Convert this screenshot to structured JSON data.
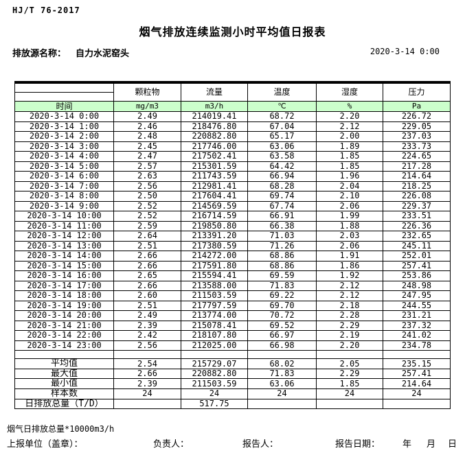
{
  "header": {
    "standard_code": "HJ/T  76-2017",
    "title": "烟气排放连续监测小时平均值日报表",
    "source_label": "排放源名称：",
    "source_name": "自力水泥窑头",
    "datetime": "2020-3-14 0:00"
  },
  "table": {
    "time_header": "时间",
    "columns": [
      "颗粒物",
      "流量",
      "温度",
      "湿度",
      "压力"
    ],
    "units": [
      "mg/m3",
      "m3/h",
      "℃",
      "%",
      "Pa"
    ],
    "rows": [
      {
        "time": "2020-3-14 0:00",
        "values": [
          "2.49",
          "214019.41",
          "68.72",
          "2.20",
          "226.72"
        ]
      },
      {
        "time": "2020-3-14 1:00",
        "values": [
          "2.46",
          "218476.80",
          "67.04",
          "2.12",
          "229.05"
        ]
      },
      {
        "time": "2020-3-14 2:00",
        "values": [
          "2.48",
          "220882.80",
          "65.17",
          "2.00",
          "237.03"
        ]
      },
      {
        "time": "2020-3-14 3:00",
        "values": [
          "2.45",
          "217746.00",
          "63.06",
          "1.89",
          "233.73"
        ]
      },
      {
        "time": "2020-3-14 4:00",
        "values": [
          "2.47",
          "217502.41",
          "63.58",
          "1.85",
          "224.65"
        ]
      },
      {
        "time": "2020-3-14 5:00",
        "values": [
          "2.57",
          "215301.59",
          "64.42",
          "1.85",
          "217.28"
        ]
      },
      {
        "time": "2020-3-14 6:00",
        "values": [
          "2.63",
          "211743.59",
          "66.94",
          "1.96",
          "214.64"
        ]
      },
      {
        "time": "2020-3-14 7:00",
        "values": [
          "2.56",
          "212981.41",
          "68.28",
          "2.04",
          "218.25"
        ]
      },
      {
        "time": "2020-3-14 8:00",
        "values": [
          "2.50",
          "217604.41",
          "69.74",
          "2.10",
          "226.08"
        ]
      },
      {
        "time": "2020-3-14 9:00",
        "values": [
          "2.52",
          "214569.59",
          "67.74",
          "2.06",
          "229.37"
        ]
      },
      {
        "time": "2020-3-14 10:00",
        "values": [
          "2.52",
          "216714.59",
          "66.91",
          "1.99",
          "233.51"
        ]
      },
      {
        "time": "2020-3-14 11:00",
        "values": [
          "2.59",
          "219850.80",
          "66.38",
          "1.88",
          "226.36"
        ]
      },
      {
        "time": "2020-3-14 12:00",
        "values": [
          "2.64",
          "213391.20",
          "71.03",
          "2.03",
          "232.65"
        ]
      },
      {
        "time": "2020-3-14 13:00",
        "values": [
          "2.51",
          "217380.59",
          "71.26",
          "2.06",
          "245.11"
        ]
      },
      {
        "time": "2020-3-14 14:00",
        "values": [
          "2.66",
          "214272.00",
          "68.86",
          "1.91",
          "252.01"
        ]
      },
      {
        "time": "2020-3-14 15:00",
        "values": [
          "2.66",
          "217591.80",
          "68.86",
          "1.86",
          "257.41"
        ]
      },
      {
        "time": "2020-3-14 16:00",
        "values": [
          "2.65",
          "215594.41",
          "69.59",
          "1.92",
          "253.86"
        ]
      },
      {
        "time": "2020-3-14 17:00",
        "values": [
          "2.66",
          "213588.00",
          "71.83",
          "2.12",
          "248.98"
        ]
      },
      {
        "time": "2020-3-14 18:00",
        "values": [
          "2.60",
          "211503.59",
          "69.22",
          "2.12",
          "247.95"
        ]
      },
      {
        "time": "2020-3-14 19:00",
        "values": [
          "2.51",
          "217797.59",
          "69.70",
          "2.18",
          "244.55"
        ]
      },
      {
        "time": "2020-3-14 20:00",
        "values": [
          "2.49",
          "213774.00",
          "70.72",
          "2.28",
          "231.21"
        ]
      },
      {
        "time": "2020-3-14 21:00",
        "values": [
          "2.39",
          "215078.41",
          "69.52",
          "2.29",
          "237.32"
        ]
      },
      {
        "time": "2020-3-14 22:00",
        "values": [
          "2.42",
          "218107.80",
          "66.97",
          "2.19",
          "241.02"
        ]
      },
      {
        "time": "2020-3-14 23:00",
        "values": [
          "2.56",
          "212025.00",
          "66.98",
          "2.20",
          "234.78"
        ]
      }
    ],
    "summary": [
      {
        "label": "平均值",
        "values": [
          "2.54",
          "215729.07",
          "68.02",
          "2.05",
          "235.15"
        ]
      },
      {
        "label": "最大值",
        "values": [
          "2.66",
          "220882.80",
          "71.83",
          "2.29",
          "257.41"
        ]
      },
      {
        "label": "最小值",
        "values": [
          "2.39",
          "211503.59",
          "63.06",
          "1.85",
          "214.64"
        ]
      },
      {
        "label": "样本数",
        "values": [
          "24",
          "24",
          "24",
          "24",
          "24"
        ]
      },
      {
        "label": "日排放总量（T/D）",
        "values": [
          "",
          "517.75",
          "",
          "",
          ""
        ]
      }
    ]
  },
  "footer": {
    "note": "烟气日排放总量*10000m3/h",
    "report_unit_label": "上报单位（盖章）：",
    "responsible_label": "负责人：",
    "reporter_label": "报告人：",
    "report_date_label": "报告日期：",
    "year_label": "年",
    "month_label": "月",
    "day_label": "日"
  },
  "colors": {
    "unit_row_bg": "#ccffcc",
    "border": "#000000"
  }
}
